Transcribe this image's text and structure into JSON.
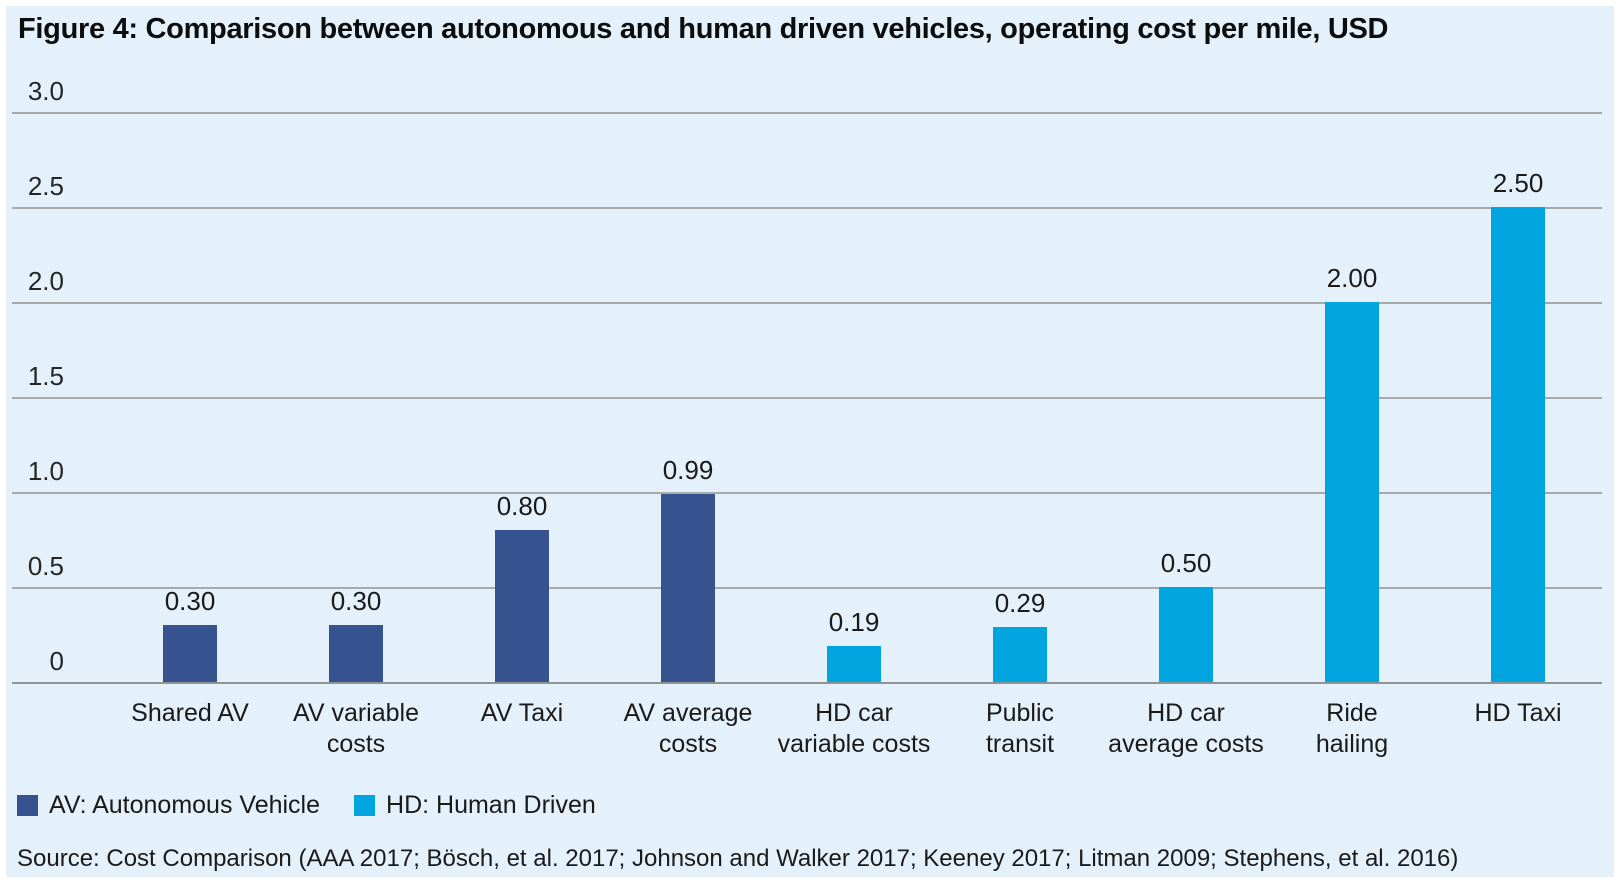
{
  "title": "Figure 4: Comparison between autonomous and human driven vehicles, operating cost per mile, USD",
  "colors": {
    "background": "#e4f1fa",
    "frame": "#ffffff",
    "gridline": "#a7aaa8",
    "baseline": "#8f9496",
    "series": {
      "AV": "#36538f",
      "HD": "#00a5e0"
    }
  },
  "chart_data": {
    "type": "bar",
    "title": "Figure 4: Comparison between autonomous and human driven vehicles, operating cost per mile, USD",
    "xlabel": "",
    "ylabel": "",
    "ylim": [
      0,
      3.0
    ],
    "ytick_labels": [
      "3.0",
      "2.5",
      "2.0",
      "1.5",
      "1.0",
      "0.5",
      "0"
    ],
    "grid": true,
    "legend_position": "bottom",
    "categories": [
      "Shared AV",
      "AV variable costs",
      "AV Taxi",
      "AV average costs",
      "HD car variable costs",
      "Public transit",
      "HD car average costs",
      "Ride hailing",
      "HD Taxi"
    ],
    "points": [
      {
        "category": "Shared AV",
        "category_display": "Shared AV",
        "value": 0.3,
        "value_label": "0.30",
        "series": "AV"
      },
      {
        "category": "AV variable costs",
        "category_display": "AV variable\ncosts",
        "value": 0.3,
        "value_label": "0.30",
        "series": "AV"
      },
      {
        "category": "AV Taxi",
        "category_display": "AV Taxi",
        "value": 0.8,
        "value_label": "0.80",
        "series": "AV"
      },
      {
        "category": "AV average costs",
        "category_display": "AV average\ncosts",
        "value": 0.99,
        "value_label": "0.99",
        "series": "AV"
      },
      {
        "category": "HD car variable costs",
        "category_display": "HD car\nvariable costs",
        "value": 0.19,
        "value_label": "0.19",
        "series": "HD"
      },
      {
        "category": "Public transit",
        "category_display": "Public\ntransit",
        "value": 0.29,
        "value_label": "0.29",
        "series": "HD"
      },
      {
        "category": "HD car average costs",
        "category_display": "HD car\naverage costs",
        "value": 0.5,
        "value_label": "0.50",
        "series": "HD"
      },
      {
        "category": "Ride hailing",
        "category_display": "Ride\nhailing",
        "value": 2.0,
        "value_label": "2.00",
        "series": "HD"
      },
      {
        "category": "HD Taxi",
        "category_display": "HD Taxi",
        "value": 2.5,
        "value_label": "2.50",
        "series": "HD"
      }
    ]
  },
  "legend": {
    "items": [
      {
        "label": "AV: Autonomous Vehicle",
        "series": "AV"
      },
      {
        "label": "HD: Human Driven",
        "series": "HD"
      }
    ]
  },
  "source": "Source: Cost Comparison (AAA 2017; Bösch, et al. 2017; Johnson and Walker 2017; Keeney 2017; Litman 2009; Stephens, et al. 2016)"
}
